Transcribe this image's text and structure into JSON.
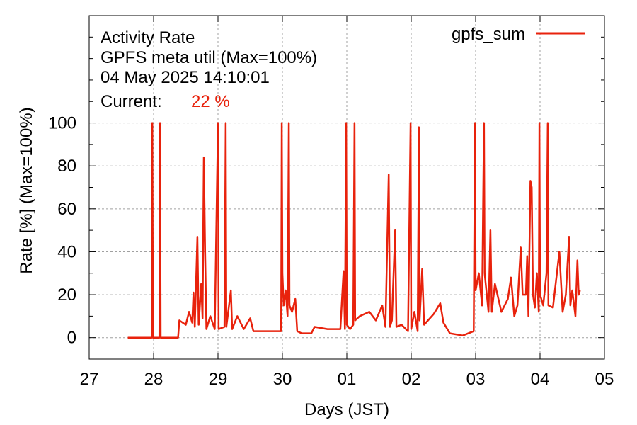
{
  "chart_data": {
    "type": "line",
    "annotation": {
      "line1": "Activity Rate",
      "line2": "GPFS meta util (Max=100%)",
      "line3": "04 May 2025 14:10:01",
      "current_label": "Current:",
      "current_value": "22 %"
    },
    "xlabel": "Days (JST)",
    "ylabel": "Rate [%]  (Max=100%)",
    "x_ticks": [
      "27",
      "28",
      "29",
      "30",
      "01",
      "02",
      "03",
      "04",
      "05"
    ],
    "y_ticks": [
      0,
      20,
      40,
      60,
      80,
      100
    ],
    "xlim": [
      0,
      8
    ],
    "ylim": [
      -10,
      150
    ],
    "grid": true,
    "legend_position": "top-right",
    "colors": {
      "series": "#e8220c",
      "grid": "#a0a0a0"
    },
    "series": [
      {
        "name": "gpfs_sum",
        "points": [
          [
            0.6,
            0
          ],
          [
            0.97,
            0
          ],
          [
            0.98,
            100
          ],
          [
            0.99,
            0
          ],
          [
            1.09,
            0
          ],
          [
            1.1,
            100
          ],
          [
            1.11,
            0
          ],
          [
            1.38,
            0
          ],
          [
            1.4,
            8
          ],
          [
            1.5,
            6
          ],
          [
            1.55,
            12
          ],
          [
            1.6,
            7
          ],
          [
            1.62,
            21
          ],
          [
            1.64,
            5
          ],
          [
            1.68,
            47
          ],
          [
            1.7,
            6
          ],
          [
            1.74,
            25
          ],
          [
            1.76,
            9
          ],
          [
            1.78,
            84
          ],
          [
            1.8,
            40
          ],
          [
            1.82,
            4
          ],
          [
            1.88,
            10
          ],
          [
            1.95,
            4
          ],
          [
            2.0,
            100
          ],
          [
            2.01,
            4
          ],
          [
            2.1,
            5
          ],
          [
            2.12,
            100
          ],
          [
            2.13,
            5
          ],
          [
            2.2,
            22
          ],
          [
            2.22,
            4
          ],
          [
            2.3,
            10
          ],
          [
            2.4,
            4
          ],
          [
            2.5,
            9
          ],
          [
            2.55,
            3
          ],
          [
            2.7,
            3
          ],
          [
            2.9,
            3
          ],
          [
            2.98,
            3
          ],
          [
            2.99,
            100
          ],
          [
            3.0,
            30
          ],
          [
            3.02,
            15
          ],
          [
            3.05,
            22
          ],
          [
            3.08,
            10
          ],
          [
            3.1,
            100
          ],
          [
            3.11,
            15
          ],
          [
            3.15,
            12
          ],
          [
            3.2,
            18
          ],
          [
            3.23,
            3
          ],
          [
            3.3,
            2
          ],
          [
            3.45,
            2
          ],
          [
            3.5,
            5
          ],
          [
            3.7,
            4
          ],
          [
            3.9,
            4
          ],
          [
            3.95,
            31
          ],
          [
            3.97,
            4
          ],
          [
            3.99,
            100
          ],
          [
            4.0,
            6
          ],
          [
            4.05,
            4
          ],
          [
            4.1,
            6
          ],
          [
            4.12,
            100
          ],
          [
            4.13,
            8
          ],
          [
            4.2,
            10
          ],
          [
            4.35,
            12
          ],
          [
            4.45,
            8
          ],
          [
            4.55,
            15
          ],
          [
            4.6,
            5
          ],
          [
            4.65,
            76
          ],
          [
            4.67,
            5
          ],
          [
            4.7,
            8
          ],
          [
            4.75,
            50
          ],
          [
            4.77,
            5
          ],
          [
            4.85,
            6
          ],
          [
            4.95,
            3
          ],
          [
            4.99,
            100
          ],
          [
            5.0,
            4
          ],
          [
            5.05,
            12
          ],
          [
            5.1,
            3
          ],
          [
            5.12,
            98
          ],
          [
            5.13,
            8
          ],
          [
            5.17,
            32
          ],
          [
            5.2,
            6
          ],
          [
            5.35,
            11
          ],
          [
            5.45,
            16
          ],
          [
            5.5,
            7
          ],
          [
            5.6,
            2
          ],
          [
            5.8,
            1
          ],
          [
            5.97,
            3
          ],
          [
            5.99,
            100
          ],
          [
            6.0,
            22
          ],
          [
            6.05,
            30
          ],
          [
            6.1,
            15
          ],
          [
            6.13,
            100
          ],
          [
            6.14,
            30
          ],
          [
            6.2,
            12
          ],
          [
            6.23,
            50
          ],
          [
            6.25,
            12
          ],
          [
            6.3,
            25
          ],
          [
            6.4,
            12
          ],
          [
            6.5,
            18
          ],
          [
            6.55,
            28
          ],
          [
            6.6,
            10
          ],
          [
            6.65,
            15
          ],
          [
            6.7,
            42
          ],
          [
            6.73,
            20
          ],
          [
            6.78,
            20
          ],
          [
            6.8,
            38
          ],
          [
            6.82,
            10
          ],
          [
            6.85,
            73
          ],
          [
            6.87,
            70
          ],
          [
            6.89,
            20
          ],
          [
            6.92,
            14
          ],
          [
            6.95,
            30
          ],
          [
            6.98,
            12
          ],
          [
            6.99,
            100
          ],
          [
            7.0,
            20
          ],
          [
            7.05,
            15
          ],
          [
            7.1,
            30
          ],
          [
            7.12,
            100
          ],
          [
            7.13,
            15
          ],
          [
            7.2,
            14
          ],
          [
            7.3,
            40
          ],
          [
            7.35,
            12
          ],
          [
            7.4,
            20
          ],
          [
            7.45,
            47
          ],
          [
            7.47,
            15
          ],
          [
            7.5,
            22
          ],
          [
            7.55,
            10
          ],
          [
            7.58,
            36
          ],
          [
            7.6,
            20
          ],
          [
            7.62,
            22
          ]
        ]
      }
    ]
  }
}
